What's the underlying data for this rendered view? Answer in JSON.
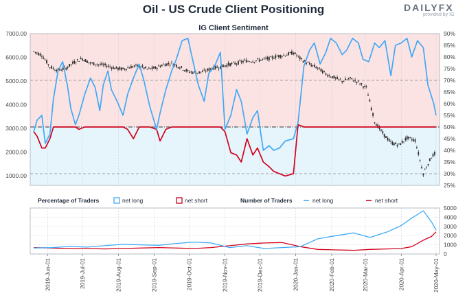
{
  "header": {
    "title": "Oil - US Crude Client Positioning",
    "logo_text": "DAILYFX",
    "logo_sub": "provided by IG"
  },
  "colors": {
    "net_long": "#3fa9f5",
    "net_short": "#d0021b",
    "long_zone": "#e6f4fc",
    "short_zone": "#fbe3e3",
    "price_candle": "#2b2b2b"
  },
  "chart_data": [
    {
      "type": "line",
      "title": "IG Client Sentiment",
      "y_left_ticks": [
        "7000.00",
        "6000.00",
        "5000.00",
        "4000.00",
        "3000.00",
        "2000.00",
        "1000.00"
      ],
      "y_left_range": [
        600,
        7000
      ],
      "y_right_ticks": [
        "90%",
        "85%",
        "80%",
        "75%",
        "70%",
        "65%",
        "60%",
        "55%",
        "50%",
        "45%",
        "40%",
        "35%",
        "30%",
        "25%"
      ],
      "y_right_range": [
        25,
        90
      ],
      "reference_lines": [
        {
          "axis": "right",
          "value": 50,
          "style": "dash-dot"
        },
        {
          "axis": "right",
          "value": 70,
          "style": "dashed"
        },
        {
          "axis": "right",
          "value": 30,
          "style": "dashed"
        }
      ],
      "series": [
        {
          "name": "net long",
          "axis": "right",
          "x": [
            "2019-05-20",
            "2019-05-23",
            "2019-05-27",
            "2019-05-30",
            "2019-06-03",
            "2019-06-06",
            "2019-06-10",
            "2019-06-14",
            "2019-06-18",
            "2019-06-21",
            "2019-06-25",
            "2019-06-28",
            "2019-07-03",
            "2019-07-08",
            "2019-07-12",
            "2019-07-16",
            "2019-07-19",
            "2019-07-23",
            "2019-07-26",
            "2019-07-31",
            "2019-08-05",
            "2019-08-09",
            "2019-08-14",
            "2019-08-19",
            "2019-08-23",
            "2019-08-28",
            "2019-09-03",
            "2019-09-06",
            "2019-09-11",
            "2019-09-16",
            "2019-09-20",
            "2019-09-25",
            "2019-09-30",
            "2019-10-04",
            "2019-10-09",
            "2019-10-14",
            "2019-10-18",
            "2019-10-23",
            "2019-10-28",
            "2019-11-01",
            "2019-11-06",
            "2019-11-11",
            "2019-11-15",
            "2019-11-20",
            "2019-11-25",
            "2019-11-29",
            "2019-12-04",
            "2019-12-09",
            "2019-12-13",
            "2019-12-18",
            "2019-12-23",
            "2019-12-30",
            "2020-01-03",
            "2020-01-08",
            "2020-01-13",
            "2020-01-17",
            "2020-01-22",
            "2020-01-27",
            "2020-01-31",
            "2020-02-05",
            "2020-02-10",
            "2020-02-14",
            "2020-02-19",
            "2020-02-24",
            "2020-02-28",
            "2020-03-04",
            "2020-03-09",
            "2020-03-13",
            "2020-03-18",
            "2020-03-23",
            "2020-03-27",
            "2020-04-01",
            "2020-04-06",
            "2020-04-10",
            "2020-04-15",
            "2020-04-20",
            "2020-04-24",
            "2020-04-29",
            "2020-05-01"
          ],
          "values": [
            48,
            53,
            55,
            43,
            47,
            62,
            74,
            78,
            68,
            58,
            51,
            55,
            64,
            71,
            67,
            57,
            68,
            74,
            66,
            61,
            55,
            64,
            71,
            77,
            70,
            59,
            49,
            56,
            66,
            74,
            79,
            87,
            88,
            79,
            68,
            61,
            73,
            76,
            82,
            49,
            55,
            66,
            61,
            47,
            54,
            57,
            40,
            42,
            40,
            41,
            44,
            45,
            52,
            76,
            83,
            86,
            77,
            82,
            88,
            86,
            81,
            83,
            88,
            86,
            79,
            78,
            86,
            84,
            87,
            72,
            85,
            86,
            88,
            80,
            87,
            84,
            68,
            60,
            55
          ]
        },
        {
          "name": "net short",
          "axis": "right",
          "x": [
            "2019-05-20",
            "2019-05-23",
            "2019-05-27",
            "2019-05-30",
            "2019-06-03",
            "2019-06-06",
            "2019-06-10",
            "2019-06-14",
            "2019-06-18",
            "2019-06-21",
            "2019-06-25",
            "2019-06-28",
            "2019-07-03",
            "2019-07-08",
            "2019-07-12",
            "2019-07-16",
            "2019-07-19",
            "2019-07-23",
            "2019-07-26",
            "2019-07-31",
            "2019-08-05",
            "2019-08-09",
            "2019-08-14",
            "2019-08-19",
            "2019-08-23",
            "2019-08-28",
            "2019-09-03",
            "2019-09-06",
            "2019-09-11",
            "2019-09-16",
            "2019-09-20",
            "2019-09-25",
            "2019-09-30",
            "2019-10-04",
            "2019-10-09",
            "2019-10-14",
            "2019-10-18",
            "2019-10-23",
            "2019-10-28",
            "2019-11-01",
            "2019-11-06",
            "2019-11-11",
            "2019-11-15",
            "2019-11-20",
            "2019-11-25",
            "2019-11-29",
            "2019-12-04",
            "2019-12-09",
            "2019-12-13",
            "2019-12-18",
            "2019-12-23",
            "2019-12-30",
            "2020-01-03",
            "2020-01-08",
            "2020-01-13",
            "2020-01-17",
            "2020-01-22",
            "2020-01-27",
            "2020-01-31",
            "2020-02-05",
            "2020-02-10",
            "2020-02-14",
            "2020-02-19",
            "2020-02-24",
            "2020-02-28",
            "2020-03-04",
            "2020-03-09",
            "2020-03-13",
            "2020-03-18",
            "2020-03-23",
            "2020-03-27",
            "2020-04-01",
            "2020-04-06",
            "2020-04-10",
            "2020-04-15",
            "2020-04-20",
            "2020-04-24",
            "2020-04-29",
            "2020-05-01"
          ],
          "values": [
            48,
            46,
            41,
            41,
            45,
            50,
            50,
            50,
            50,
            50,
            50,
            49,
            50,
            50,
            50,
            50,
            50,
            50,
            50,
            50,
            50,
            49,
            45,
            50,
            50,
            50,
            49,
            44,
            49,
            50,
            50,
            50,
            50,
            50,
            50,
            50,
            50,
            50,
            50,
            48,
            39,
            38,
            35,
            45,
            38,
            41,
            35,
            33,
            31,
            30,
            29,
            30,
            51,
            50,
            50,
            50,
            50,
            50,
            50,
            50,
            50,
            50,
            50,
            50,
            50,
            50,
            50,
            50,
            50,
            50,
            50,
            50,
            50,
            50,
            50,
            50,
            50,
            50,
            50
          ]
        },
        {
          "name": "price",
          "axis": "left",
          "x": [
            "2019-05-20",
            "2019-05-27",
            "2019-06-03",
            "2019-06-10",
            "2019-06-17",
            "2019-06-24",
            "2019-07-01",
            "2019-07-08",
            "2019-07-15",
            "2019-07-22",
            "2019-07-29",
            "2019-08-05",
            "2019-08-12",
            "2019-08-19",
            "2019-08-26",
            "2019-09-02",
            "2019-09-09",
            "2019-09-16",
            "2019-09-23",
            "2019-09-30",
            "2019-10-07",
            "2019-10-14",
            "2019-10-21",
            "2019-10-28",
            "2019-11-04",
            "2019-11-11",
            "2019-11-18",
            "2019-11-25",
            "2019-12-02",
            "2019-12-09",
            "2019-12-16",
            "2019-12-23",
            "2019-12-30",
            "2020-01-06",
            "2020-01-13",
            "2020-01-20",
            "2020-01-27",
            "2020-02-03",
            "2020-02-10",
            "2020-02-17",
            "2020-02-24",
            "2020-03-02",
            "2020-03-09",
            "2020-03-16",
            "2020-03-23",
            "2020-03-30",
            "2020-04-06",
            "2020-04-13",
            "2020-04-20",
            "2020-04-27",
            "2020-05-01"
          ],
          "values": [
            6250,
            6100,
            5600,
            5450,
            5550,
            5800,
            5950,
            5750,
            5700,
            5650,
            5550,
            5500,
            5600,
            5650,
            5500,
            5550,
            5700,
            5750,
            5600,
            5400,
            5350,
            5400,
            5550,
            5600,
            5700,
            5750,
            5850,
            5850,
            5900,
            5950,
            6050,
            6100,
            6200,
            5900,
            5700,
            5550,
            5300,
            5150,
            5000,
            5100,
            4950,
            4700,
            3300,
            2800,
            2400,
            2300,
            2600,
            2500,
            1100,
            1800,
            2000
          ]
        }
      ]
    },
    {
      "type": "line",
      "title": "",
      "legend": {
        "percentage_label": "Percentage of Traders",
        "percentage_items": [
          "net long",
          "net short"
        ],
        "number_label": "Number of Traders",
        "number_items": [
          "net long",
          "net short"
        ]
      },
      "y_right_ticks": [
        "5000",
        "4000",
        "3000",
        "2000",
        "1000",
        "0"
      ],
      "y_range": [
        0,
        5000
      ],
      "x_tick_labels": [
        "2019-Jun-01",
        "2019-Jul-01",
        "2019-Aug-01",
        "2019-Sep-01",
        "2019-Oct-01",
        "2019-Nov-01",
        "2019-Dec-01",
        "2020-Jan-01",
        "2020-Feb-01",
        "2020-Mar-01",
        "2020-Apr-01",
        "2020-May-01"
      ],
      "x_tick_dates": [
        "2019-06-01",
        "2019-07-01",
        "2019-08-01",
        "2019-09-01",
        "2019-10-01",
        "2019-11-01",
        "2019-12-01",
        "2020-01-01",
        "2020-02-01",
        "2020-03-01",
        "2020-04-01",
        "2020-05-01"
      ],
      "x_range": [
        "2019-05-17",
        "2020-05-04"
      ],
      "series": [
        {
          "name": "net long",
          "x": [
            "2019-05-20",
            "2019-06-05",
            "2019-06-20",
            "2019-07-05",
            "2019-07-20",
            "2019-08-05",
            "2019-08-20",
            "2019-09-05",
            "2019-09-20",
            "2019-10-05",
            "2019-10-20",
            "2019-11-05",
            "2019-11-20",
            "2019-12-05",
            "2019-12-20",
            "2020-01-05",
            "2020-01-20",
            "2020-02-05",
            "2020-02-20",
            "2020-03-05",
            "2020-03-20",
            "2020-04-01",
            "2020-04-10",
            "2020-04-20",
            "2020-04-27",
            "2020-05-01"
          ],
          "values": [
            650,
            700,
            820,
            750,
            900,
            1050,
            1000,
            950,
            1150,
            1300,
            1200,
            700,
            900,
            600,
            700,
            800,
            1650,
            2000,
            2300,
            1800,
            2400,
            3100,
            3900,
            4700,
            3500,
            2600
          ]
        },
        {
          "name": "net short",
          "x": [
            "2019-05-20",
            "2019-06-05",
            "2019-06-20",
            "2019-07-05",
            "2019-07-20",
            "2019-08-05",
            "2019-08-20",
            "2019-09-05",
            "2019-09-20",
            "2019-10-05",
            "2019-10-20",
            "2019-11-05",
            "2019-11-20",
            "2019-12-05",
            "2019-12-20",
            "2020-01-05",
            "2020-01-20",
            "2020-02-05",
            "2020-02-20",
            "2020-03-05",
            "2020-03-20",
            "2020-04-01",
            "2020-04-10",
            "2020-04-20",
            "2020-04-27",
            "2020-05-01"
          ],
          "values": [
            700,
            650,
            600,
            600,
            550,
            600,
            650,
            700,
            650,
            600,
            700,
            900,
            1100,
            1200,
            1250,
            800,
            500,
            450,
            400,
            500,
            550,
            600,
            800,
            1500,
            1900,
            2400
          ]
        }
      ]
    }
  ]
}
